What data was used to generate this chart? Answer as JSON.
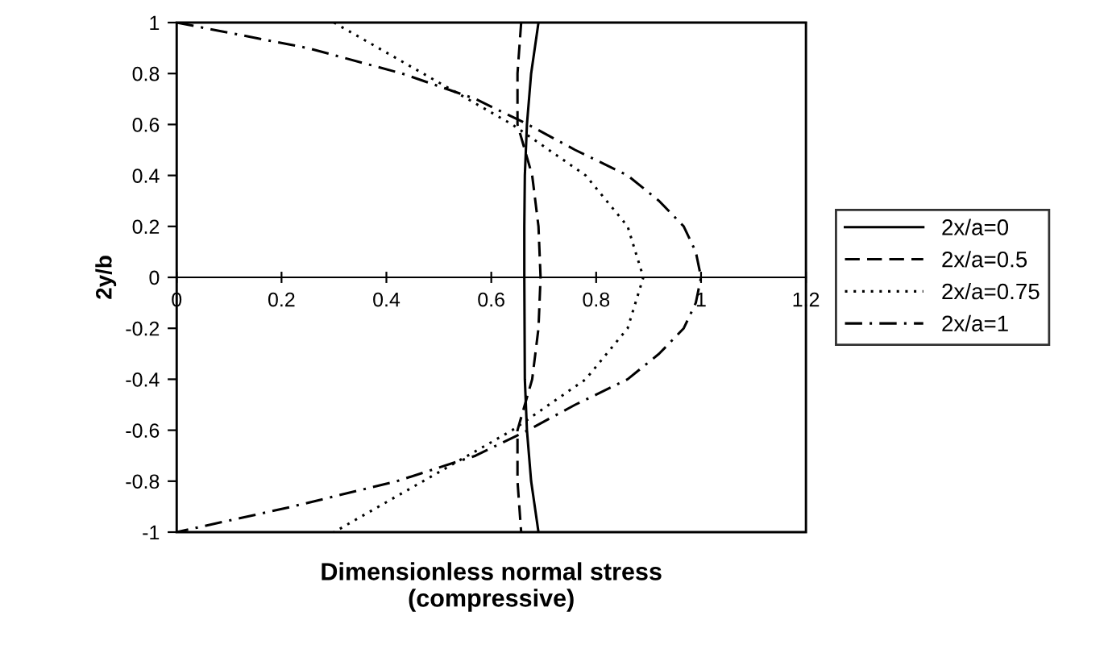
{
  "chart_data": {
    "type": "line",
    "xlabel": "Dimensionless normal stress\n(compressive)",
    "ylabel": "2y/b",
    "xlim": [
      0,
      1.2
    ],
    "xticks": [
      0,
      0.2,
      0.4,
      0.6,
      0.8,
      1,
      1.2
    ],
    "ylim": [
      -1,
      1
    ],
    "yticks": [
      -1,
      -0.8,
      -0.6,
      -0.4,
      -0.2,
      0,
      0.2,
      0.4,
      0.6,
      0.8,
      1
    ],
    "grid": false,
    "legend": "right",
    "marker": "none",
    "series": [
      {
        "name": "2x/a=0",
        "color": "#000000",
        "line_style": "solid",
        "x": [
          0.69,
          0.676,
          0.668,
          0.664,
          0.663,
          0.663,
          0.664,
          0.668,
          0.676,
          0.69
        ],
        "values": [
          1,
          0.8,
          0.6,
          0.4,
          0.2,
          0,
          -0.4,
          -0.6,
          -0.8,
          -1
        ]
      },
      {
        "name": "2x/a=0.5",
        "color": "#000000",
        "line_style": "dashed",
        "x": [
          0.657,
          0.65,
          0.65,
          0.678,
          0.69,
          0.694,
          0.69,
          0.678,
          0.65,
          0.65,
          0.657
        ],
        "values": [
          1,
          0.8,
          0.6,
          0.4,
          0.2,
          0,
          -0.2,
          -0.4,
          -0.6,
          -0.8,
          -1
        ]
      },
      {
        "name": "2x/a=0.75",
        "color": "#000000",
        "line_style": "dotted",
        "x": [
          0.3,
          0.47,
          0.64,
          0.78,
          0.86,
          0.89,
          0.86,
          0.78,
          0.64,
          0.47,
          0.3
        ],
        "values": [
          1,
          0.8,
          0.6,
          0.4,
          0.2,
          0,
          -0.2,
          -0.4,
          -0.6,
          -0.8,
          -1
        ]
      },
      {
        "name": "2x/a=1",
        "color": "#000000",
        "line_style": "dashdot",
        "x": [
          0,
          0.25,
          0.43,
          0.57,
          0.67,
          0.76,
          0.86,
          0.92,
          0.967,
          0.99,
          1,
          0.99,
          0.967,
          0.92,
          0.86,
          0.76,
          0.67,
          0.57,
          0.42,
          0.22,
          0
        ],
        "values": [
          1,
          0.9,
          0.8,
          0.7,
          0.6,
          0.5,
          0.4,
          0.3,
          0.2,
          0.1,
          0,
          -0.1,
          -0.2,
          -0.3,
          -0.4,
          -0.5,
          -0.6,
          -0.7,
          -0.8,
          -0.9,
          -1
        ]
      }
    ]
  }
}
